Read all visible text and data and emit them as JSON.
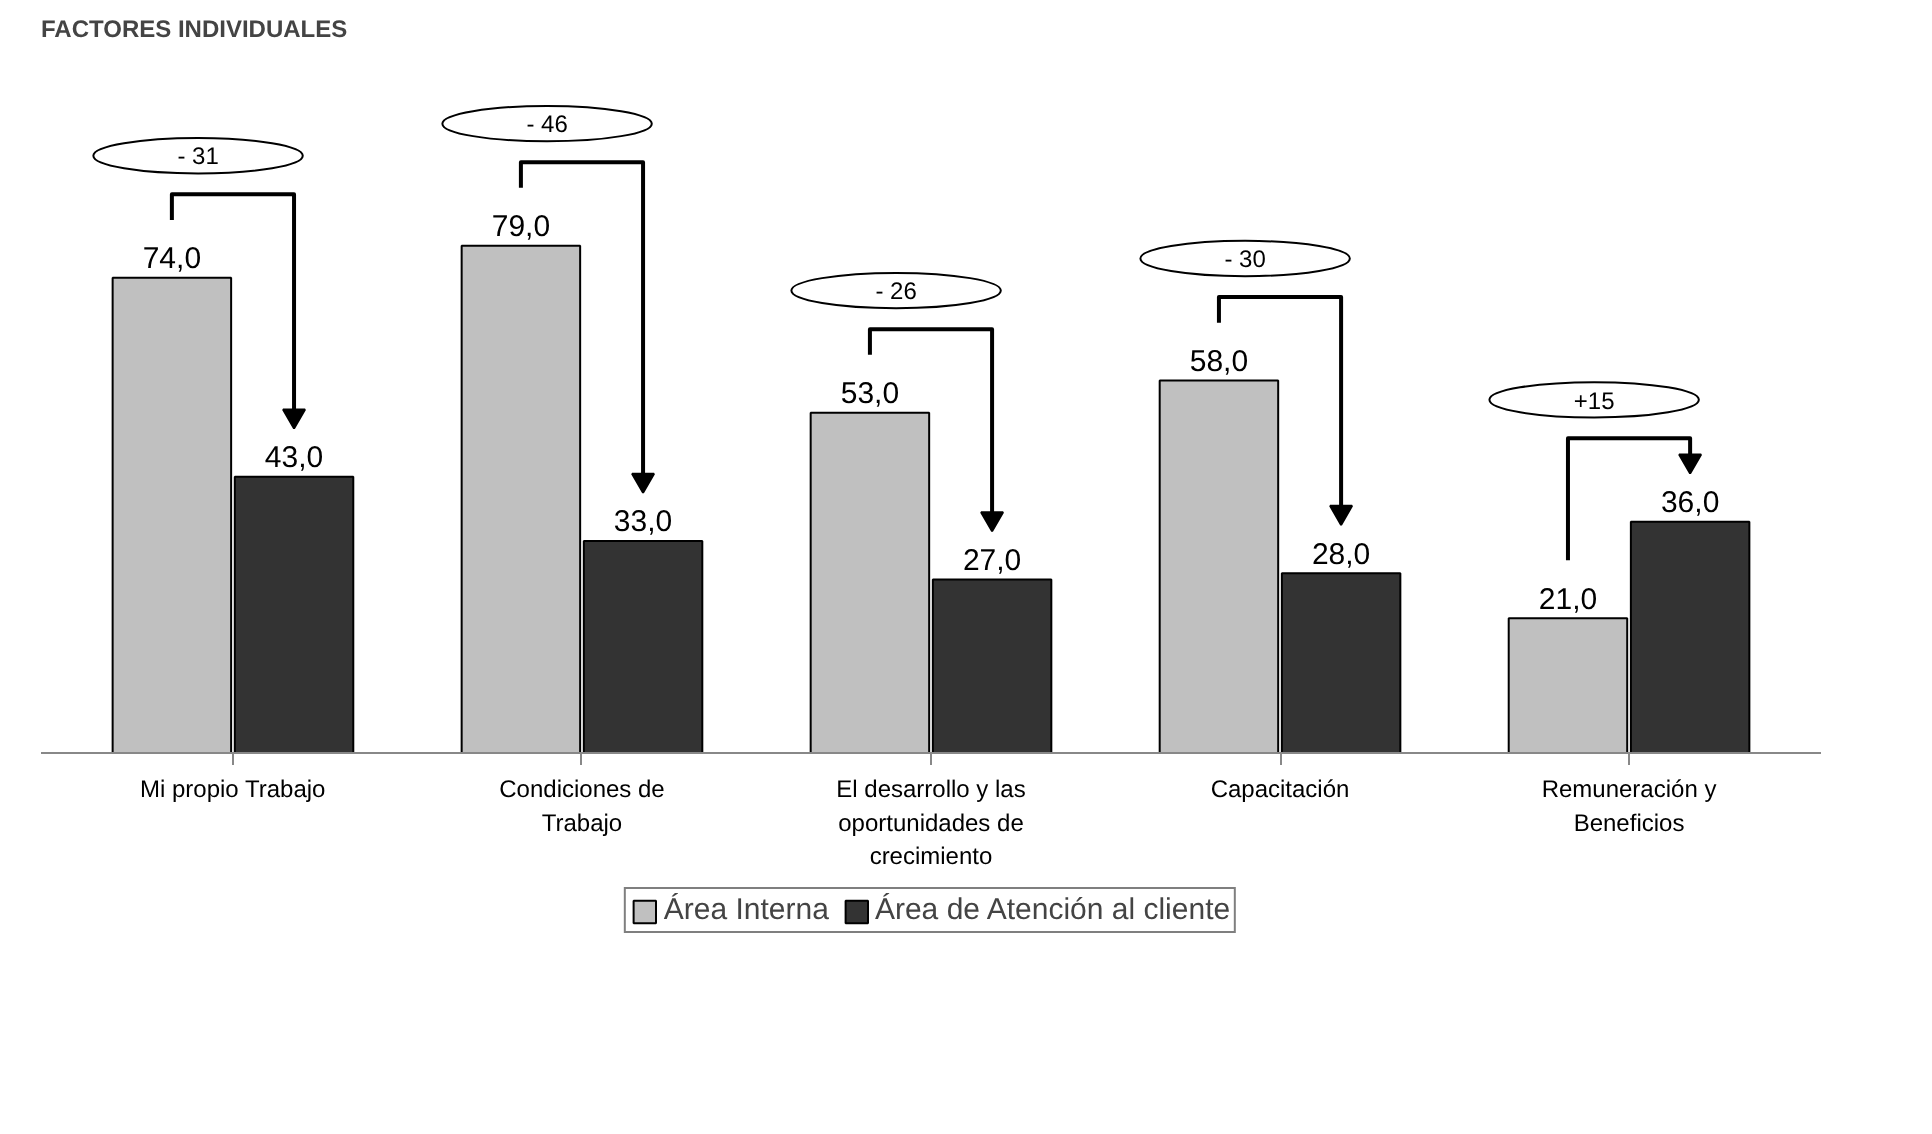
{
  "chart_data": {
    "type": "bar",
    "title": "FACTORES INDIVIDUALES",
    "categories": [
      "Mi propio Trabajo",
      "Condiciones de Trabajo",
      "El desarrollo y las oportunidades de crecimiento",
      "Capacitación",
      "Remuneración y Beneficios"
    ],
    "series": [
      {
        "name": "Área Interna",
        "color": "#c0c0c0",
        "values": [
          74,
          79,
          53,
          58,
          21
        ],
        "value_labels": [
          "74,0",
          "79,0",
          "53,0",
          "58,0",
          "21,0"
        ]
      },
      {
        "name": "Área de Atención al cliente",
        "color": "#333333",
        "values": [
          43,
          33,
          27,
          28,
          36
        ],
        "value_labels": [
          "43,0",
          "33,0",
          "27,0",
          "28,0",
          "36,0"
        ]
      }
    ],
    "annotations": [
      "- 31",
      "- 46",
      "- 26",
      "- 30",
      "+15"
    ],
    "legend": "bottom",
    "grid": false,
    "tick_labels": "x"
  }
}
